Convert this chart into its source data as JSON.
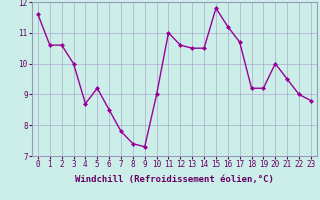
{
  "x": [
    0,
    1,
    2,
    3,
    4,
    5,
    6,
    7,
    8,
    9,
    10,
    11,
    12,
    13,
    14,
    15,
    16,
    17,
    18,
    19,
    20,
    21,
    22,
    23
  ],
  "y": [
    11.6,
    10.6,
    10.6,
    10.0,
    8.7,
    9.2,
    8.5,
    7.8,
    7.4,
    7.3,
    9.0,
    11.0,
    10.6,
    10.5,
    10.5,
    11.8,
    11.2,
    10.7,
    9.2,
    9.2,
    10.0,
    9.5,
    9.0,
    8.8
  ],
  "line_color": "#990099",
  "marker": "D",
  "marker_size": 2,
  "bg_color": "#cceee8",
  "grid_color": "#aaaacc",
  "border_color": "#9999bb",
  "xlabel": "Windchill (Refroidissement éolien,°C)",
  "xlabel_color": "#660066",
  "tick_color": "#660066",
  "xlim": [
    -0.5,
    23.5
  ],
  "ylim": [
    7,
    12
  ],
  "yticks": [
    7,
    8,
    9,
    10,
    11,
    12
  ],
  "xticks": [
    0,
    1,
    2,
    3,
    4,
    5,
    6,
    7,
    8,
    9,
    10,
    11,
    12,
    13,
    14,
    15,
    16,
    17,
    18,
    19,
    20,
    21,
    22,
    23
  ],
  "line_width": 1.0,
  "tick_fontsize": 5.5,
  "xlabel_fontsize": 6.5
}
